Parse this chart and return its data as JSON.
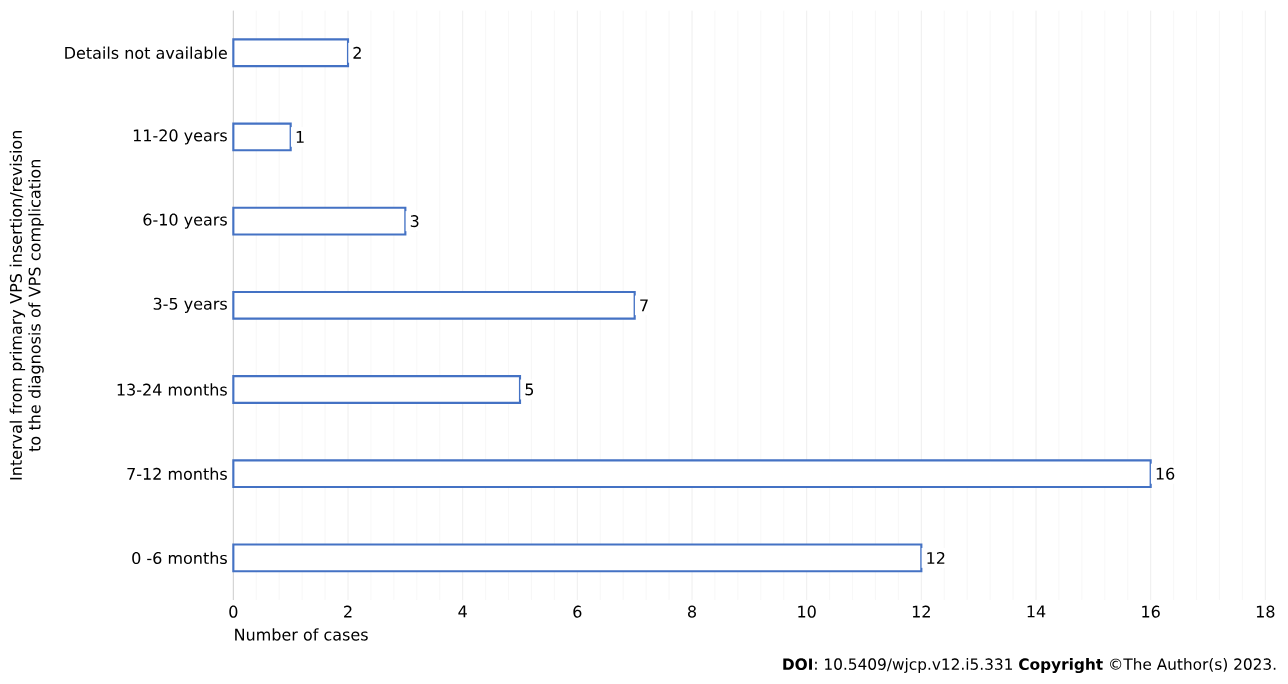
{
  "chart_data": {
    "type": "bar",
    "orientation": "horizontal",
    "categories": [
      "Details not available",
      "11-20 years",
      "6-10 years",
      "3-5 years",
      "13-24 months",
      "7-12 months",
      "0 -6 months"
    ],
    "values": [
      2,
      1,
      3,
      7,
      5,
      16,
      12
    ],
    "color": "#4472c4",
    "xlabel": "Number of cases",
    "ylabel": "Interval from primary VPS insertion/revision to the diagnosis of VPS complication",
    "xlim": [
      0,
      18
    ],
    "xticks": [
      0,
      2,
      4,
      6,
      8,
      10,
      12,
      14,
      16,
      18
    ],
    "grid": "x",
    "data_labels": true,
    "annotations": [
      "**DOI**: 10.5409/wjcp.v12.i5.331 **Copyright** ©The Author(s) 2023."
    ]
  }
}
